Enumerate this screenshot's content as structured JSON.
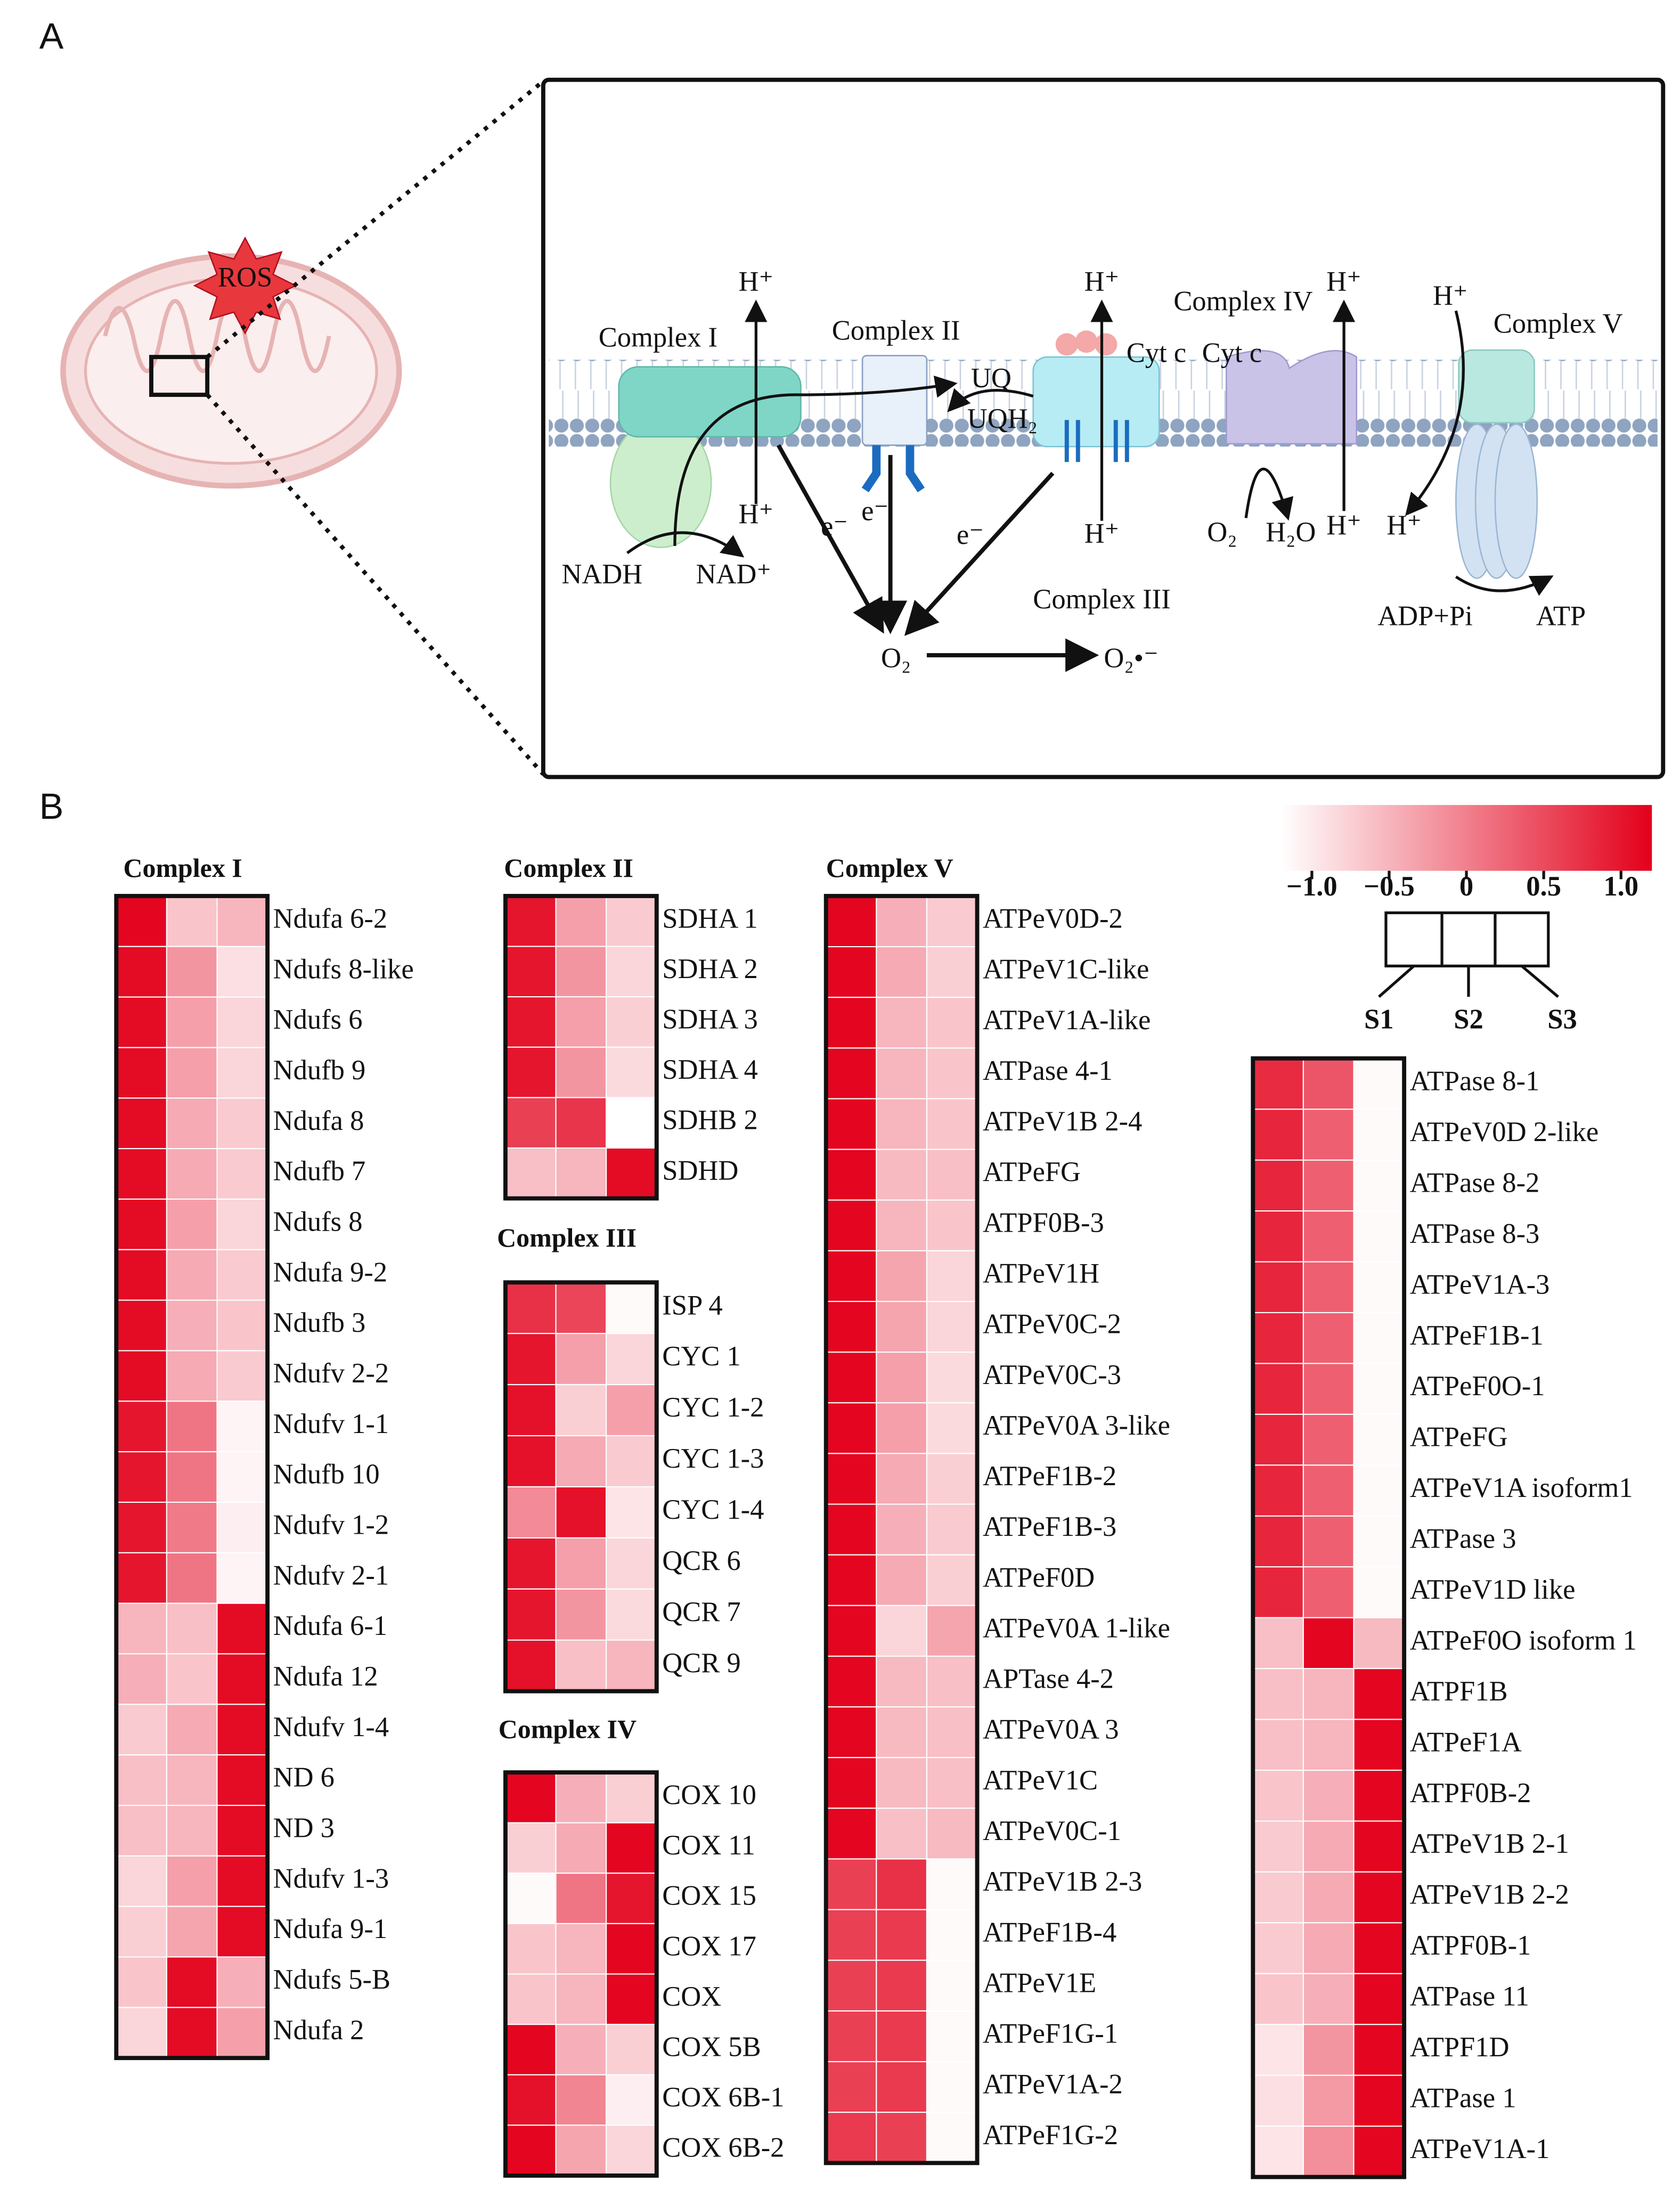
{
  "panel_labels": [
    "A",
    "B"
  ],
  "diagram": {
    "labels": [
      "Complex I",
      "Complex II",
      "Complex III",
      "Complex IV",
      "Complex V",
      "NADH",
      "NAD⁺",
      "UQ",
      "UQH₂",
      "Cyt c",
      "Cyt c",
      "H⁺",
      "H⁺",
      "H⁺",
      "H⁺",
      "H⁺",
      "H⁺",
      "H⁺",
      "H⁺",
      "e⁻",
      "e⁻",
      "e⁻",
      "O₂",
      "O₂•⁻",
      "O₂",
      "H₂O",
      "ADP+Pi",
      "ATP",
      "ROS"
    ]
  },
  "colorscale": {
    "lim": [
      -1.2,
      1.2
    ],
    "colors": [
      "#ffffff",
      "#e3001b"
    ],
    "ticks": [
      {
        "value": -1,
        "label": "−1.0"
      },
      {
        "value": -0.5,
        "label": "−0.5"
      },
      0,
      0.5,
      {
        "value": 1,
        "label": "1.0"
      }
    ],
    "samples": [
      "S1",
      "S2",
      "S3"
    ]
  },
  "chart_data": [
    {
      "type": "heatmap",
      "title": "Complex I",
      "rows": [
        "Ndufa 6-2",
        "Ndufs 8-like",
        "Ndufs 6",
        "Ndufb 9",
        "Ndufa 8",
        "Ndufb 7",
        "Ndufs 8",
        "Ndufa 9-2",
        "Ndufb 3",
        "Ndufv 2-2",
        "Ndufv 1-1",
        "Ndufb 10",
        "Ndufv 1-2",
        "Ndufv 2-1",
        "Ndufa 6-1",
        "Ndufa 12",
        "Ndufv 1-4",
        "ND 6",
        "ND 3",
        "Ndufv 1-3",
        "Ndufa 9-1",
        "Ndufs 5-B",
        "Ndufa 2"
      ],
      "values": [
        [
          1.15,
          -0.65,
          -0.5
        ],
        [
          1.1,
          -0.2,
          -0.9
        ],
        [
          1.1,
          -0.3,
          -0.8
        ],
        [
          1.1,
          -0.3,
          -0.8
        ],
        [
          1.1,
          -0.4,
          -0.7
        ],
        [
          1.1,
          -0.4,
          -0.7
        ],
        [
          1.1,
          -0.3,
          -0.8
        ],
        [
          1.1,
          -0.4,
          -0.7
        ],
        [
          1.1,
          -0.45,
          -0.65
        ],
        [
          1.1,
          -0.4,
          -0.7
        ],
        [
          1.0,
          0.1,
          -1.1
        ],
        [
          1.0,
          0.1,
          -1.1
        ],
        [
          1.0,
          0.05,
          -1.05
        ],
        [
          1.0,
          0.1,
          -1.1
        ],
        [
          -0.5,
          -0.6,
          1.1
        ],
        [
          -0.45,
          -0.65,
          1.1
        ],
        [
          -0.7,
          -0.4,
          1.1
        ],
        [
          -0.6,
          -0.5,
          1.1
        ],
        [
          -0.6,
          -0.5,
          1.1
        ],
        [
          -0.8,
          -0.3,
          1.1
        ],
        [
          -0.75,
          -0.35,
          1.1
        ],
        [
          -0.65,
          1.1,
          -0.45
        ],
        [
          -0.8,
          1.1,
          -0.3
        ]
      ]
    },
    {
      "type": "heatmap",
      "title": "Complex II",
      "rows": [
        "SDHA 1",
        "SDHA 2",
        "SDHA 3",
        "SDHA 4",
        "SDHB 2",
        "SDHD"
      ],
      "values": [
        [
          1.0,
          -0.3,
          -0.7
        ],
        [
          1.0,
          -0.2,
          -0.8
        ],
        [
          1.0,
          -0.3,
          -0.75
        ],
        [
          1.0,
          -0.2,
          -0.85
        ],
        [
          0.6,
          0.7,
          -1.2
        ],
        [
          -0.6,
          -0.5,
          1.1
        ]
      ]
    },
    {
      "type": "heatmap",
      "title": "Complex III",
      "rows": [
        "ISP 4",
        "CYC 1",
        "CYC 1-2",
        "CYC 1-3",
        "CYC 1-4",
        "QCR 6",
        "QCR 7",
        "QCR 9"
      ],
      "values": [
        [
          0.75,
          0.55,
          -1.15
        ],
        [
          1.0,
          -0.3,
          -0.8
        ],
        [
          1.05,
          -0.75,
          -0.3
        ],
        [
          1.05,
          -0.4,
          -0.7
        ],
        [
          -0.1,
          1.05,
          -0.95
        ],
        [
          1.0,
          -0.3,
          -0.8
        ],
        [
          1.0,
          -0.2,
          -0.85
        ],
        [
          1.05,
          -0.6,
          -0.5
        ]
      ]
    },
    {
      "type": "heatmap",
      "title": "Complex IV",
      "rows": [
        "COX 10",
        "COX 11",
        "COX 15",
        "COX 17",
        "COX",
        "COX 5B",
        "COX 6B-1",
        "COX 6B-2"
      ],
      "values": [
        [
          1.15,
          -0.45,
          -0.75
        ],
        [
          -0.75,
          -0.4,
          1.15
        ],
        [
          -1.15,
          0.1,
          1.0
        ],
        [
          -0.65,
          -0.5,
          1.15
        ],
        [
          -0.65,
          -0.5,
          1.15
        ],
        [
          1.15,
          -0.45,
          -0.75
        ],
        [
          1.05,
          -0.05,
          -1.05
        ],
        [
          1.15,
          -0.35,
          -0.8
        ]
      ]
    },
    {
      "type": "heatmap",
      "title": "Complex V",
      "rows": [
        "ATPeV0D-2",
        "ATPeV1C-like",
        "ATPeV1A-like",
        "ATPase 4-1",
        "ATPeV1B 2-4",
        "ATPeFG",
        "ATPF0B-3",
        "ATPeV1H",
        "ATPeV0C-2",
        "ATPeV0C-3",
        "ATPeV0A 3-like",
        "ATPeF1B-2",
        "ATPeF1B-3",
        "ATPeF0D",
        "ATPeV0A 1-like",
        "APTase 4-2",
        "ATPeV0A 3",
        "ATPeV1C",
        "ATPeV0C-1",
        "ATPeV1B 2-3",
        "ATPeF1B-4",
        "ATPeV1E",
        "ATPeF1G-1",
        "ATPeV1A-2",
        "ATPeF1G-2"
      ],
      "values": [
        [
          1.15,
          -0.45,
          -0.7
        ],
        [
          1.15,
          -0.4,
          -0.75
        ],
        [
          1.15,
          -0.5,
          -0.65
        ],
        [
          1.15,
          -0.5,
          -0.65
        ],
        [
          1.15,
          -0.5,
          -0.65
        ],
        [
          1.15,
          -0.55,
          -0.6
        ],
        [
          1.15,
          -0.5,
          -0.65
        ],
        [
          1.15,
          -0.35,
          -0.8
        ],
        [
          1.15,
          -0.35,
          -0.8
        ],
        [
          1.15,
          -0.3,
          -0.85
        ],
        [
          1.15,
          -0.3,
          -0.85
        ],
        [
          1.15,
          -0.4,
          -0.75
        ],
        [
          1.15,
          -0.45,
          -0.7
        ],
        [
          1.15,
          -0.4,
          -0.75
        ],
        [
          1.15,
          -0.8,
          -0.35
        ],
        [
          1.15,
          -0.55,
          -0.6
        ],
        [
          1.15,
          -0.55,
          -0.6
        ],
        [
          1.15,
          -0.55,
          -0.6
        ],
        [
          1.15,
          -0.6,
          -0.55
        ],
        [
          0.6,
          0.75,
          -1.15
        ],
        [
          0.6,
          0.65,
          -1.15
        ],
        [
          0.6,
          0.65,
          -1.15
        ],
        [
          0.6,
          0.65,
          -1.15
        ],
        [
          0.6,
          0.65,
          -1.15
        ],
        [
          0.65,
          0.6,
          -1.15
        ]
      ]
    },
    {
      "type": "heatmap",
      "rows": [
        "ATPase 8-1",
        "ATPeV0D 2-like",
        "ATPase 8-2",
        "ATPase 8-3",
        "ATPeV1A-3",
        "ATPeF1B-1",
        "ATPeF0O-1",
        "ATPeFG",
        "ATPeV1A isoform1",
        "ATPase 3",
        "ATPeV1D like",
        "ATPeF0O isoform 1",
        "ATPF1B",
        "ATPeF1A",
        "ATPF0B-2",
        "ATPeV1B 2-1",
        "ATPeV1B 2-2",
        "ATPF0B-1",
        "ATPase 11",
        "ATPF1D",
        "ATPase 1",
        "ATPeV1A-1"
      ],
      "values": [
        [
          0.8,
          0.4,
          -1.15
        ],
        [
          0.85,
          0.3,
          -1.15
        ],
        [
          0.85,
          0.3,
          -1.15
        ],
        [
          0.85,
          0.3,
          -1.15
        ],
        [
          0.85,
          0.3,
          -1.15
        ],
        [
          0.85,
          0.3,
          -1.15
        ],
        [
          0.85,
          0.3,
          -1.15
        ],
        [
          0.85,
          0.3,
          -1.15
        ],
        [
          0.85,
          0.3,
          -1.15
        ],
        [
          0.85,
          0.3,
          -1.15
        ],
        [
          0.85,
          0.3,
          -1.15
        ],
        [
          -0.6,
          1.15,
          -0.55
        ],
        [
          -0.6,
          -0.5,
          1.15
        ],
        [
          -0.6,
          -0.5,
          1.15
        ],
        [
          -0.65,
          -0.45,
          1.15
        ],
        [
          -0.7,
          -0.4,
          1.15
        ],
        [
          -0.7,
          -0.4,
          1.15
        ],
        [
          -0.7,
          -0.4,
          1.15
        ],
        [
          -0.65,
          -0.45,
          1.15
        ],
        [
          -0.95,
          -0.2,
          1.15
        ],
        [
          -0.9,
          -0.25,
          1.15
        ],
        [
          -0.95,
          -0.15,
          1.15
        ]
      ]
    }
  ]
}
